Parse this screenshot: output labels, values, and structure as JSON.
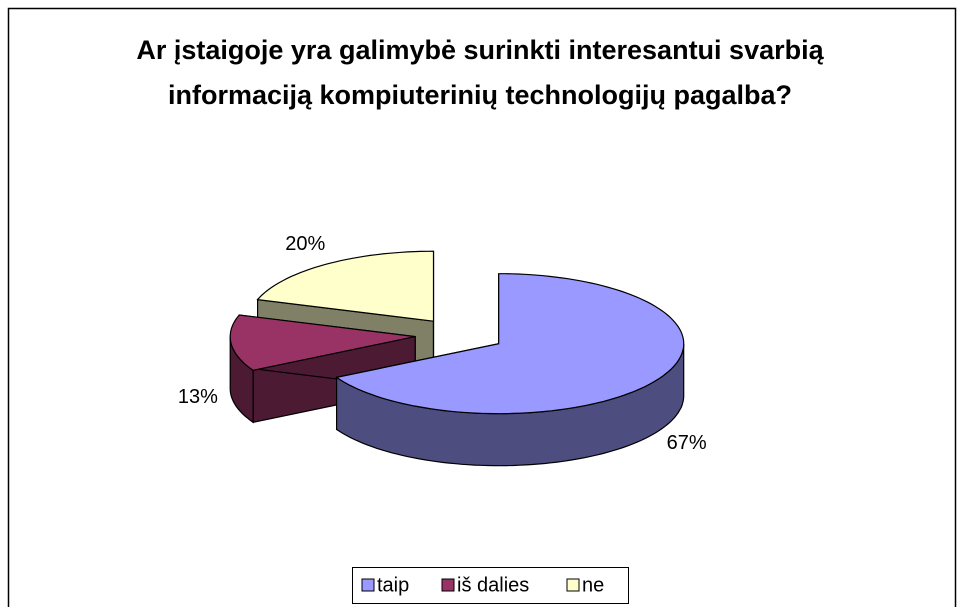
{
  "chart_data": {
    "type": "pie3d",
    "title": "Ar įstaigoje yra galimybė surinkti interesantui svarbią informaciją kompiuterinių technologijų pagalba?",
    "categories": [
      "taip",
      "iš dalies",
      "ne"
    ],
    "values": [
      67,
      13,
      20
    ],
    "value_labels": [
      "67%",
      "13%",
      "20%"
    ],
    "colors": [
      "#9999ff",
      "#993366",
      "#ffffcc"
    ],
    "legend": "bottom"
  }
}
